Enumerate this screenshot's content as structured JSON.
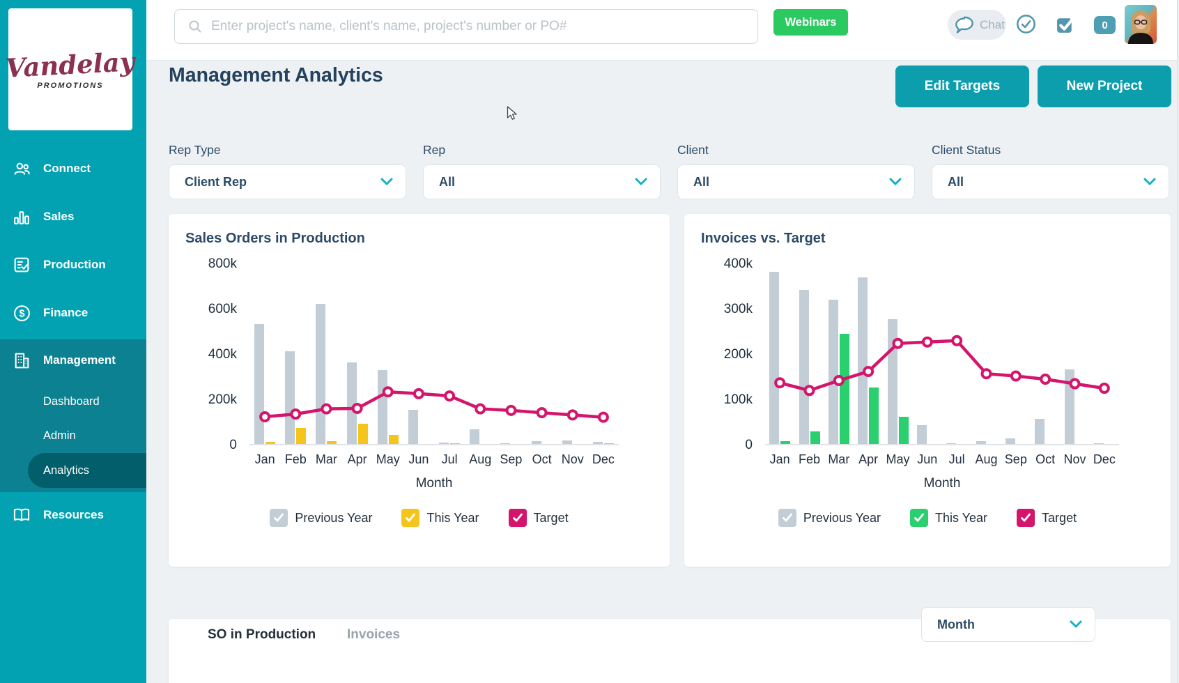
{
  "sidebar": {
    "brand": {
      "name": "Vandelay",
      "tagline": "PROMOTIONS"
    },
    "items": [
      {
        "label": "Connect"
      },
      {
        "label": "Sales"
      },
      {
        "label": "Production"
      },
      {
        "label": "Finance"
      },
      {
        "label": "Management"
      },
      {
        "label": "Resources"
      }
    ],
    "management_children": [
      {
        "label": "Dashboard"
      },
      {
        "label": "Admin"
      },
      {
        "label": "Analytics"
      }
    ],
    "active_item": "Management",
    "active_child": "Analytics"
  },
  "topbar": {
    "search_placeholder": "Enter project's name, client's name, project's number or PO#",
    "webinars_label": "Webinars",
    "chat_label": "Chat",
    "notification_count": "0"
  },
  "header": {
    "title": "Management Analytics",
    "edit_targets_label": "Edit Targets",
    "new_project_label": "New Project"
  },
  "filters": [
    {
      "label": "Rep Type",
      "value": "Client Rep"
    },
    {
      "label": "Rep",
      "value": "All"
    },
    {
      "label": "Client",
      "value": "All"
    },
    {
      "label": "Client Status",
      "value": "All"
    }
  ],
  "chart_data": [
    {
      "type": "bar+line",
      "title": "Sales Orders in Production",
      "categories": [
        "Jan",
        "Feb",
        "Mar",
        "Apr",
        "May",
        "Jun",
        "Jul",
        "Aug",
        "Sep",
        "Oct",
        "Nov",
        "Dec"
      ],
      "xlabel": "Month",
      "ylabel": "",
      "unit": "thousands",
      "ymax_k": 800,
      "ytick_labels": [
        "0",
        "200k",
        "400k",
        "600k",
        "800k"
      ],
      "grid": "off",
      "legend_position": "bottom",
      "series": [
        {
          "name": "Previous Year",
          "type": "bar",
          "color": "#c3cdd5",
          "values": [
            530,
            410,
            620,
            360,
            325,
            150,
            5,
            65,
            2,
            12,
            15,
            8
          ]
        },
        {
          "name": "This Year",
          "type": "bar",
          "color": "#f6c51d",
          "values": [
            8,
            70,
            12,
            90,
            40,
            0,
            3,
            0,
            0,
            0,
            0,
            3
          ]
        },
        {
          "name": "Target",
          "type": "line",
          "color": "#d4156c",
          "values": [
            120,
            132,
            155,
            157,
            230,
            222,
            212,
            155,
            148,
            138,
            128,
            118
          ]
        }
      ]
    },
    {
      "type": "bar+line",
      "title": "Invoices vs. Target",
      "categories": [
        "Jan",
        "Feb",
        "Mar",
        "Apr",
        "May",
        "Jun",
        "Jul",
        "Aug",
        "Sep",
        "Oct",
        "Nov",
        "Dec"
      ],
      "xlabel": "Month",
      "ylabel": "",
      "unit": "thousands",
      "ymax_k": 400,
      "ytick_labels": [
        "0",
        "100k",
        "200k",
        "300k",
        "400k"
      ],
      "grid": "off",
      "legend_position": "bottom",
      "series": [
        {
          "name": "Previous Year",
          "type": "bar",
          "color": "#c3cdd5",
          "values": [
            380,
            340,
            318,
            368,
            275,
            42,
            1,
            6,
            12,
            55,
            165,
            2
          ]
        },
        {
          "name": "This Year",
          "type": "bar",
          "color": "#2ad06e",
          "values": [
            6,
            28,
            243,
            125,
            60,
            0,
            0,
            0,
            0,
            0,
            0,
            0
          ]
        },
        {
          "name": "Target",
          "type": "line",
          "color": "#d4156c",
          "values": [
            135,
            118,
            140,
            160,
            222,
            225,
            228,
            155,
            150,
            143,
            133,
            123
          ]
        }
      ]
    }
  ],
  "bottom_panel": {
    "tabs": [
      {
        "label": "SO in Production",
        "active": true
      },
      {
        "label": "Invoices",
        "active": false
      }
    ],
    "month_dropdown_value": "Month"
  },
  "colors": {
    "sidebar_teal": "#02a2b2",
    "sidebar_active_section": "#0b8191",
    "sidebar_active_pill": "#035e6b",
    "accent_teal": "#0d9eae",
    "webinars_green": "#2aca61",
    "target_pink": "#d4156c",
    "this_year_yellow": "#f6c51d",
    "this_year_green": "#2ad06e",
    "previous_year_gray": "#c3cdd5",
    "heading_navy": "#24415e"
  }
}
